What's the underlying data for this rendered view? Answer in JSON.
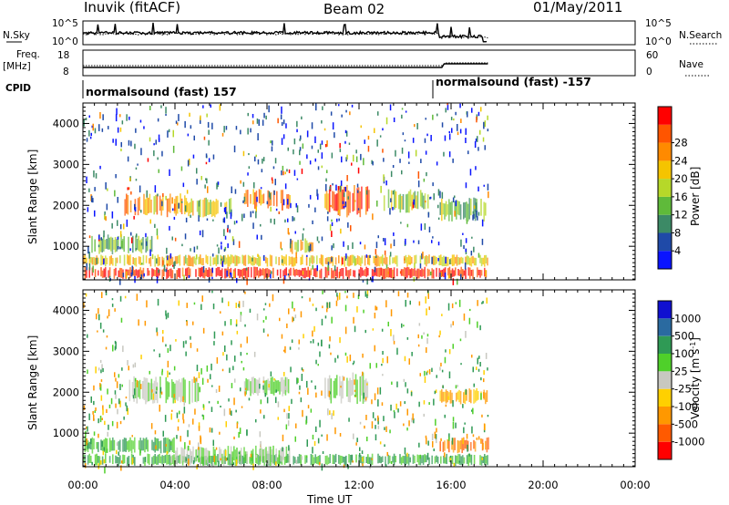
{
  "header": {
    "station": "Inuvik (fitACF)",
    "beam": "Beam 02",
    "date": "01/May/2011"
  },
  "strip_labels": {
    "nsky": "N.Sky",
    "nsky_hi": "10^5",
    "nsky_lo": "10^0",
    "freq_top": "Freq.",
    "freq_unit": "[MHz]",
    "freq_hi": "18",
    "freq_lo": "8",
    "nsearch": "N.Search",
    "nsearch_hi": "10^5",
    "nsearch_lo": "10^0",
    "nave": "Nave",
    "nave_hi": "60",
    "nave_lo": "0",
    "cpid": "CPID",
    "cpid_1": "normalsound (fast) 157",
    "cpid_2": "normalsound (fast) -157"
  },
  "colors": {
    "power": [
      "#0a14ff",
      "#1f4aa8",
      "#3c8a66",
      "#5fba3a",
      "#b6d829",
      "#f5c400",
      "#ff8a00",
      "#ff5500",
      "#ff0000"
    ],
    "velocity": [
      "#ff0000",
      "#ff5a00",
      "#ff9800",
      "#ffd000",
      "#c8c8c0",
      "#4fd02a",
      "#2f9a55",
      "#2a6aa0",
      "#1010d0"
    ]
  },
  "chart_data": [
    {
      "type": "heatmap",
      "title": "",
      "xlabel": "Time UT",
      "ylabel": "Slant Range [km]",
      "x_ticks": [
        "00:00",
        "04:00",
        "08:00",
        "12:00",
        "16:00",
        "20:00",
        "00:00"
      ],
      "xlim_hours": [
        0,
        24
      ],
      "data_end_hour": 17.6,
      "ylim": [
        180,
        4500
      ],
      "y_ticks": [
        1000,
        2000,
        3000,
        4000
      ],
      "colorbar_label": "Power [dB]",
      "colorbar_ticks": [
        "4",
        "8",
        "12",
        "16",
        "20",
        "24",
        "28"
      ],
      "colorbar_range": [
        0,
        30
      ],
      "regions": [
        {
          "hours": [
            0,
            17.6
          ],
          "range_km": [
            200,
            500
          ],
          "value": 28
        },
        {
          "hours": [
            0,
            17.6
          ],
          "range_km": [
            500,
            800
          ],
          "value": 18
        },
        {
          "hours": [
            0.3,
            3.0
          ],
          "range_km": [
            800,
            1300
          ],
          "value": 12
        },
        {
          "hours": [
            1.8,
            4.5
          ],
          "range_km": [
            1700,
            2300
          ],
          "value": 20
        },
        {
          "hours": [
            4.5,
            6.5
          ],
          "range_km": [
            1700,
            2200
          ],
          "value": 16
        },
        {
          "hours": [
            7.0,
            9.0
          ],
          "range_km": [
            1900,
            2400
          ],
          "value": 22
        },
        {
          "hours": [
            10.5,
            12.5
          ],
          "range_km": [
            1700,
            2500
          ],
          "value": 24
        },
        {
          "hours": [
            13.0,
            15.0
          ],
          "range_km": [
            1800,
            2400
          ],
          "value": 14
        },
        {
          "hours": [
            15.5,
            17.6
          ],
          "range_km": [
            1600,
            2200
          ],
          "value": 12
        },
        {
          "hours": [
            9.0,
            10.0
          ],
          "range_km": [
            800,
            1200
          ],
          "value": 18
        }
      ]
    },
    {
      "type": "heatmap",
      "title": "",
      "xlabel": "Time UT",
      "ylabel": "Slant Range [km]",
      "x_ticks": [
        "00:00",
        "04:00",
        "08:00",
        "12:00",
        "16:00",
        "20:00",
        "00:00"
      ],
      "xlim_hours": [
        0,
        24
      ],
      "data_end_hour": 17.6,
      "ylim": [
        180,
        4500
      ],
      "y_ticks": [
        1000,
        2000,
        3000,
        4000
      ],
      "colorbar_label": "Velocity [m s^-1]",
      "colorbar_ticks": [
        "-1000",
        "-500",
        "-100",
        "-25",
        "25",
        "100",
        "500",
        "1000"
      ],
      "regions": [
        {
          "hours": [
            0,
            17.6
          ],
          "range_km": [
            200,
            500
          ],
          "value": 100
        },
        {
          "hours": [
            0,
            4.0
          ],
          "range_km": [
            500,
            900
          ],
          "value": 100
        },
        {
          "hours": [
            4.0,
            9.0
          ],
          "range_km": [
            200,
            700
          ],
          "value": 25
        },
        {
          "hours": [
            15.5,
            17.6
          ],
          "range_km": [
            500,
            900
          ],
          "value": -500
        },
        {
          "hours": [
            2.0,
            5.0
          ],
          "range_km": [
            1700,
            2400
          ],
          "value": 25
        },
        {
          "hours": [
            7.0,
            9.0
          ],
          "range_km": [
            1900,
            2400
          ],
          "value": 25
        },
        {
          "hours": [
            10.5,
            12.5
          ],
          "range_km": [
            1700,
            2500
          ],
          "value": 25
        },
        {
          "hours": [
            15.5,
            17.6
          ],
          "range_km": [
            1700,
            2100
          ],
          "value": -100
        }
      ]
    }
  ]
}
